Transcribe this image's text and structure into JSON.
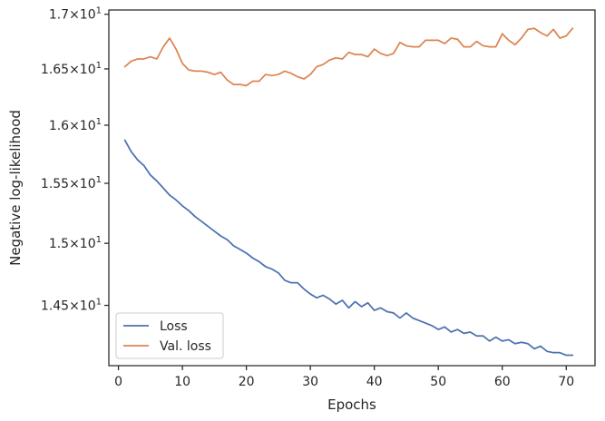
{
  "chart_data": {
    "type": "line",
    "title": "",
    "xlabel": "Epochs",
    "ylabel": "Negative log-likelihood",
    "yscale": "log",
    "xlim": [
      -1.5,
      74.5
    ],
    "ylim": [
      14.03,
      17.04
    ],
    "xticks": [
      0,
      10,
      20,
      30,
      40,
      50,
      60,
      70
    ],
    "xtick_labels": [
      "0",
      "10",
      "20",
      "30",
      "40",
      "50",
      "60",
      "70"
    ],
    "yticks": [
      {
        "value": 14.5,
        "base": "1.45×10",
        "exp": "1"
      },
      {
        "value": 15.0,
        "base": "1.5×10",
        "exp": "1"
      },
      {
        "value": 15.5,
        "base": "1.55×10",
        "exp": "1"
      },
      {
        "value": 16.0,
        "base": "1.6×10",
        "exp": "1"
      },
      {
        "value": 16.5,
        "base": "1.65×10",
        "exp": "1"
      },
      {
        "value": 17.0,
        "base": "1.7×10",
        "exp": "1"
      }
    ],
    "legend_position": "lower-left",
    "series": [
      {
        "name": "Loss",
        "color": "#4c72b0",
        "x": [
          1,
          2,
          3,
          4,
          5,
          6,
          7,
          8,
          9,
          10,
          11,
          12,
          13,
          14,
          15,
          16,
          17,
          18,
          19,
          20,
          21,
          22,
          23,
          24,
          25,
          26,
          27,
          28,
          29,
          30,
          31,
          32,
          33,
          34,
          35,
          36,
          37,
          38,
          39,
          40,
          41,
          42,
          43,
          44,
          45,
          46,
          47,
          48,
          49,
          50,
          51,
          52,
          53,
          54,
          55,
          56,
          57,
          58,
          59,
          60,
          61,
          62,
          63,
          64,
          65,
          66,
          67,
          68,
          69,
          70,
          71
        ],
        "values": [
          15.87,
          15.77,
          15.7,
          15.65,
          15.57,
          15.52,
          15.46,
          15.4,
          15.36,
          15.31,
          15.27,
          15.22,
          15.18,
          15.14,
          15.1,
          15.06,
          15.03,
          14.98,
          14.95,
          14.92,
          14.88,
          14.85,
          14.81,
          14.79,
          14.76,
          14.7,
          14.68,
          14.68,
          14.63,
          14.59,
          14.56,
          14.58,
          14.55,
          14.51,
          14.54,
          14.48,
          14.53,
          14.49,
          14.52,
          14.46,
          14.48,
          14.45,
          14.44,
          14.4,
          14.44,
          14.4,
          14.38,
          14.36,
          14.34,
          14.31,
          14.33,
          14.29,
          14.31,
          14.28,
          14.29,
          14.26,
          14.26,
          14.22,
          14.25,
          14.22,
          14.23,
          14.2,
          14.21,
          14.2,
          14.16,
          14.18,
          14.14,
          14.13,
          14.13,
          14.11,
          14.11
        ]
      },
      {
        "name": "Val. loss",
        "color": "#dd8452",
        "x": [
          1,
          2,
          3,
          4,
          5,
          6,
          7,
          8,
          9,
          10,
          11,
          12,
          13,
          14,
          15,
          16,
          17,
          18,
          19,
          20,
          21,
          22,
          23,
          24,
          25,
          26,
          27,
          28,
          29,
          30,
          31,
          32,
          33,
          34,
          35,
          36,
          37,
          38,
          39,
          40,
          41,
          42,
          43,
          44,
          45,
          46,
          47,
          48,
          49,
          50,
          51,
          52,
          53,
          54,
          55,
          56,
          57,
          58,
          59,
          60,
          61,
          62,
          63,
          64,
          65,
          66,
          67,
          68,
          69,
          70,
          71
        ],
        "values": [
          16.52,
          16.57,
          16.59,
          16.59,
          16.61,
          16.59,
          16.7,
          16.78,
          16.68,
          16.55,
          16.49,
          16.48,
          16.48,
          16.47,
          16.45,
          16.47,
          16.4,
          16.36,
          16.36,
          16.35,
          16.39,
          16.39,
          16.45,
          16.44,
          16.45,
          16.48,
          16.46,
          16.43,
          16.41,
          16.45,
          16.52,
          16.54,
          16.58,
          16.6,
          16.59,
          16.65,
          16.63,
          16.63,
          16.61,
          16.68,
          16.64,
          16.62,
          16.64,
          16.74,
          16.71,
          16.7,
          16.7,
          16.76,
          16.76,
          16.76,
          16.73,
          16.78,
          16.77,
          16.7,
          16.7,
          16.75,
          16.71,
          16.7,
          16.7,
          16.82,
          16.76,
          16.72,
          16.78,
          16.86,
          16.87,
          16.83,
          16.8,
          16.86,
          16.78,
          16.8,
          16.87
        ]
      }
    ]
  }
}
